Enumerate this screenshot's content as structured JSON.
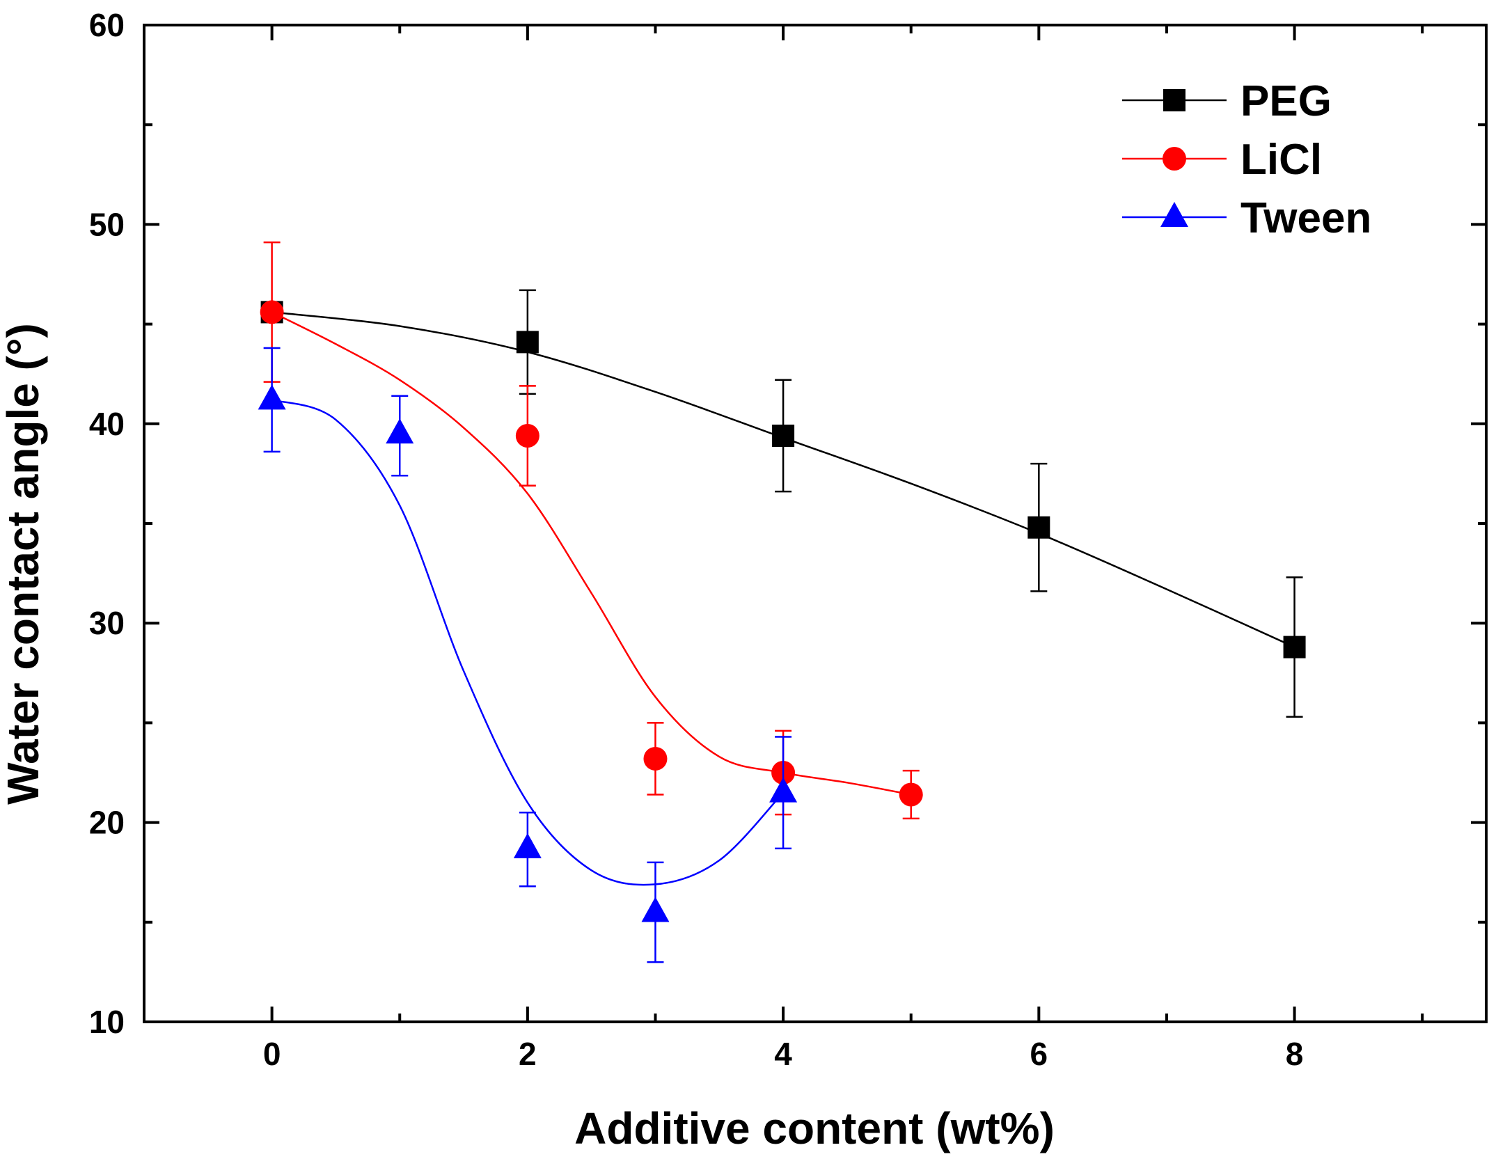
{
  "chart_data": {
    "type": "scatter",
    "title": "",
    "xlabel": "Additive content (wt%)",
    "ylabel": "Water contact angle (°)",
    "xlim": [
      -1,
      9.5
    ],
    "ylim": [
      10,
      60
    ],
    "x_ticks": [
      0,
      2,
      4,
      6,
      8
    ],
    "x_tick_labels": [
      "0",
      "2",
      "4",
      "6",
      "8"
    ],
    "x_minor_ticks": [
      1,
      3,
      5,
      7,
      9
    ],
    "y_ticks": [
      10,
      20,
      30,
      40,
      50,
      60
    ],
    "y_tick_labels": [
      "10",
      "20",
      "30",
      "40",
      "50",
      "60"
    ],
    "y_minor_ticks": [
      15,
      25,
      35,
      45,
      55
    ],
    "grid": false,
    "legend_position": "top-right",
    "series": [
      {
        "name": "PEG",
        "color": "#000000",
        "marker": "square",
        "x": [
          0,
          2,
          4,
          6,
          8
        ],
        "y": [
          45.6,
          44.1,
          39.4,
          34.8,
          28.8
        ],
        "error": [
          [
            45.6,
            45.6
          ],
          [
            41.5,
            46.7
          ],
          [
            36.6,
            42.2
          ],
          [
            31.6,
            38.0
          ],
          [
            25.3,
            32.3
          ]
        ],
        "fit_curve": [
          [
            0,
            45.6
          ],
          [
            1,
            44.9
          ],
          [
            2,
            43.6
          ],
          [
            3,
            41.6
          ],
          [
            4,
            39.3
          ],
          [
            5,
            37.0
          ],
          [
            6,
            34.5
          ],
          [
            7,
            31.7
          ],
          [
            8,
            28.8
          ]
        ]
      },
      {
        "name": "LiCl",
        "color": "#ff0000",
        "marker": "circle",
        "x": [
          0,
          2,
          3,
          4,
          5
        ],
        "y": [
          45.6,
          39.4,
          23.2,
          22.5,
          21.4
        ],
        "error": [
          [
            42.1,
            49.1
          ],
          [
            36.9,
            41.9
          ],
          [
            21.4,
            25.0
          ],
          [
            20.4,
            24.6
          ],
          [
            20.2,
            22.6
          ]
        ],
        "fit_curve": [
          [
            0,
            45.6
          ],
          [
            0.5,
            44.0
          ],
          [
            1,
            42.2
          ],
          [
            1.5,
            39.8
          ],
          [
            2,
            36.5
          ],
          [
            2.5,
            31.5
          ],
          [
            3,
            26.3
          ],
          [
            3.5,
            23.3
          ],
          [
            4,
            22.5
          ],
          [
            4.5,
            22.0
          ],
          [
            5,
            21.4
          ]
        ]
      },
      {
        "name": "Tween",
        "color": "#0000ff",
        "marker": "triangle",
        "x": [
          0,
          1,
          2,
          3,
          4
        ],
        "y": [
          41.2,
          39.5,
          18.7,
          15.5,
          21.5
        ],
        "error": [
          [
            38.6,
            43.8
          ],
          [
            37.4,
            41.4
          ],
          [
            16.8,
            20.5
          ],
          [
            13.0,
            18.0
          ],
          [
            18.7,
            24.3
          ]
        ],
        "fit_curve": [
          [
            0,
            41.2
          ],
          [
            0.5,
            40.2
          ],
          [
            1,
            35.9
          ],
          [
            1.5,
            27.6
          ],
          [
            2,
            21.0
          ],
          [
            2.5,
            17.6
          ],
          [
            3,
            16.9
          ],
          [
            3.5,
            18.1
          ],
          [
            4,
            21.5
          ]
        ]
      }
    ]
  }
}
